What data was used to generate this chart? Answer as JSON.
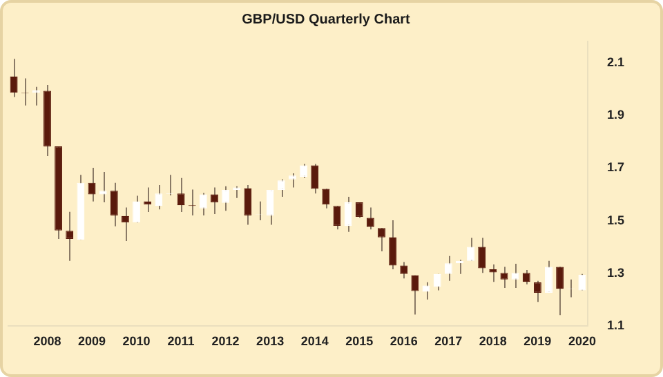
{
  "chart_data": {
    "type": "candlestick",
    "title": "GBP/USD Quarterly Chart",
    "categories": [
      null,
      null,
      null,
      "2008",
      null,
      null,
      null,
      "2009",
      null,
      null,
      null,
      "2010",
      null,
      null,
      null,
      "2011",
      null,
      null,
      null,
      "2012",
      null,
      null,
      null,
      "2013",
      null,
      null,
      null,
      "2014",
      null,
      null,
      null,
      "2015",
      null,
      null,
      null,
      "2016",
      null,
      null,
      null,
      "2017",
      null,
      null,
      null,
      "2018",
      null,
      null,
      null,
      "2019",
      null,
      null,
      null,
      "2020"
    ],
    "ohlc": [
      [
        2.047,
        2.114,
        1.969,
        1.986
      ],
      [
        1.985,
        2.04,
        1.937,
        1.983
      ],
      [
        1.985,
        2.008,
        1.937,
        1.994
      ],
      [
        1.993,
        2.015,
        1.745,
        1.782
      ],
      [
        1.782,
        1.782,
        1.431,
        1.463
      ],
      [
        1.462,
        1.534,
        1.348,
        1.431
      ],
      [
        1.428,
        1.674,
        1.428,
        1.644
      ],
      [
        1.644,
        1.701,
        1.573,
        1.6
      ],
      [
        1.6,
        1.685,
        1.57,
        1.614
      ],
      [
        1.614,
        1.644,
        1.479,
        1.52
      ],
      [
        1.518,
        1.55,
        1.423,
        1.493
      ],
      [
        1.493,
        1.595,
        1.493,
        1.573
      ],
      [
        1.573,
        1.626,
        1.533,
        1.561
      ],
      [
        1.556,
        1.635,
        1.543,
        1.603
      ],
      [
        1.602,
        1.674,
        1.596,
        1.604
      ],
      [
        1.603,
        1.662,
        1.533,
        1.559
      ],
      [
        1.559,
        1.618,
        1.52,
        1.556
      ],
      [
        1.547,
        1.605,
        1.52,
        1.6
      ],
      [
        1.6,
        1.626,
        1.525,
        1.57
      ],
      [
        1.568,
        1.631,
        1.538,
        1.617
      ],
      [
        1.617,
        1.631,
        1.586,
        1.626
      ],
      [
        1.623,
        1.635,
        1.485,
        1.52
      ],
      [
        1.523,
        1.573,
        1.502,
        1.524
      ],
      [
        1.52,
        1.617,
        1.485,
        1.617
      ],
      [
        1.617,
        1.657,
        1.591,
        1.653
      ],
      [
        1.657,
        1.68,
        1.626,
        1.671
      ],
      [
        1.667,
        1.715,
        1.662,
        1.71
      ],
      [
        1.71,
        1.715,
        1.603,
        1.621
      ],
      [
        1.621,
        1.621,
        1.547,
        1.561
      ],
      [
        1.556,
        1.556,
        1.467,
        1.481
      ],
      [
        1.481,
        1.591,
        1.458,
        1.57
      ],
      [
        1.57,
        1.57,
        1.511,
        1.515
      ],
      [
        1.511,
        1.55,
        1.467,
        1.476
      ],
      [
        1.472,
        1.472,
        1.384,
        1.437
      ],
      [
        1.437,
        1.502,
        1.316,
        1.33
      ],
      [
        1.33,
        1.343,
        1.281,
        1.298
      ],
      [
        1.293,
        1.293,
        1.144,
        1.233
      ],
      [
        1.231,
        1.267,
        1.201,
        1.254
      ],
      [
        1.249,
        1.298,
        1.236,
        1.298
      ],
      [
        1.298,
        1.366,
        1.272,
        1.339
      ],
      [
        1.339,
        1.352,
        1.298,
        1.348
      ],
      [
        1.348,
        1.435,
        1.348,
        1.401
      ],
      [
        1.401,
        1.435,
        1.302,
        1.32
      ],
      [
        1.316,
        1.334,
        1.268,
        1.304
      ],
      [
        1.302,
        1.325,
        1.245,
        1.277
      ],
      [
        1.277,
        1.337,
        1.245,
        1.302
      ],
      [
        1.302,
        1.313,
        1.259,
        1.268
      ],
      [
        1.266,
        1.272,
        1.192,
        1.227
      ],
      [
        1.227,
        1.348,
        1.227,
        1.325
      ],
      [
        1.325,
        1.325,
        1.142,
        1.242
      ],
      [
        1.241,
        1.277,
        1.21,
        1.243
      ],
      [
        1.236,
        1.298,
        1.236,
        1.295
      ]
    ],
    "colors": [
      "#5a1a0c",
      "#5a1a0c",
      "#ffffff",
      "#5a1a0c",
      "#5a1a0c",
      "#5a1a0c",
      "#ffffff",
      "#5a1a0c",
      "#ffffff",
      "#5a1a0c",
      "#5a1a0c",
      "#ffffff",
      "#5a1a0c",
      "#ffffff",
      "#ffffff",
      "#5a1a0c",
      "#5a1a0c",
      "#ffffff",
      "#5a1a0c",
      "#ffffff",
      "#ffffff",
      "#5a1a0c",
      "#ffffff",
      "#ffffff",
      "#ffffff",
      "#ffffff",
      "#ffffff",
      "#5a1a0c",
      "#5a1a0c",
      "#5a1a0c",
      "#ffffff",
      "#5a1a0c",
      "#5a1a0c",
      "#5a1a0c",
      "#5a1a0c",
      "#5a1a0c",
      "#5a1a0c",
      "#ffffff",
      "#ffffff",
      "#ffffff",
      "#ffffff",
      "#ffffff",
      "#5a1a0c",
      "#5a1a0c",
      "#5a1a0c",
      "#ffffff",
      "#5a1a0c",
      "#5a1a0c",
      "#ffffff",
      "#5a1a0c",
      "#ffffff",
      "#ffffff"
    ],
    "ylim": [
      1.1,
      2.18
    ],
    "yticks": [
      1.1,
      1.3,
      1.5,
      1.7,
      1.9,
      2.1
    ]
  }
}
